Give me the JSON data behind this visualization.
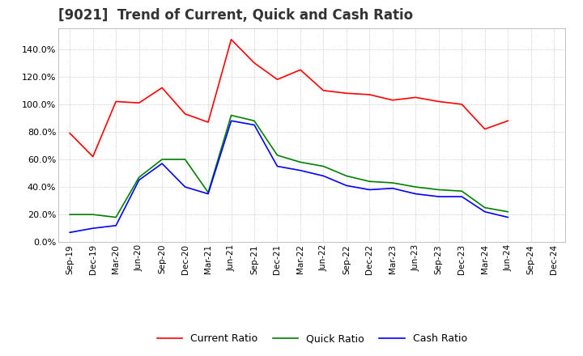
{
  "title": "[9021]  Trend of Current, Quick and Cash Ratio",
  "x_labels": [
    "Sep-19",
    "Dec-19",
    "Mar-20",
    "Jun-20",
    "Sep-20",
    "Dec-20",
    "Mar-21",
    "Jun-21",
    "Sep-21",
    "Dec-21",
    "Mar-22",
    "Jun-22",
    "Sep-22",
    "Dec-22",
    "Mar-23",
    "Jun-23",
    "Sep-23",
    "Dec-23",
    "Mar-24",
    "Jun-24",
    "Sep-24",
    "Dec-24"
  ],
  "current_ratio": [
    79.0,
    62.0,
    102.0,
    101.0,
    112.0,
    93.0,
    87.0,
    147.0,
    130.0,
    118.0,
    125.0,
    110.0,
    108.0,
    107.0,
    103.0,
    105.0,
    102.0,
    100.0,
    82.0,
    88.0,
    null,
    null
  ],
  "quick_ratio": [
    20.0,
    20.0,
    18.0,
    47.0,
    60.0,
    60.0,
    36.0,
    92.0,
    88.0,
    63.0,
    58.0,
    55.0,
    48.0,
    44.0,
    43.0,
    40.0,
    38.0,
    37.0,
    25.0,
    22.0,
    null,
    null
  ],
  "cash_ratio": [
    7.0,
    10.0,
    12.0,
    45.0,
    57.0,
    40.0,
    35.0,
    88.0,
    85.0,
    55.0,
    52.0,
    48.0,
    41.0,
    38.0,
    39.0,
    35.0,
    33.0,
    33.0,
    22.0,
    18.0,
    null,
    null
  ],
  "current_color": "#ff0000",
  "quick_color": "#008000",
  "cash_color": "#0000ff",
  "ylim": [
    0,
    155
  ],
  "yticks": [
    0,
    20,
    40,
    60,
    80,
    100,
    120,
    140
  ],
  "background_color": "#ffffff",
  "grid_color": "#aaaaaa",
  "title_fontsize": 12
}
